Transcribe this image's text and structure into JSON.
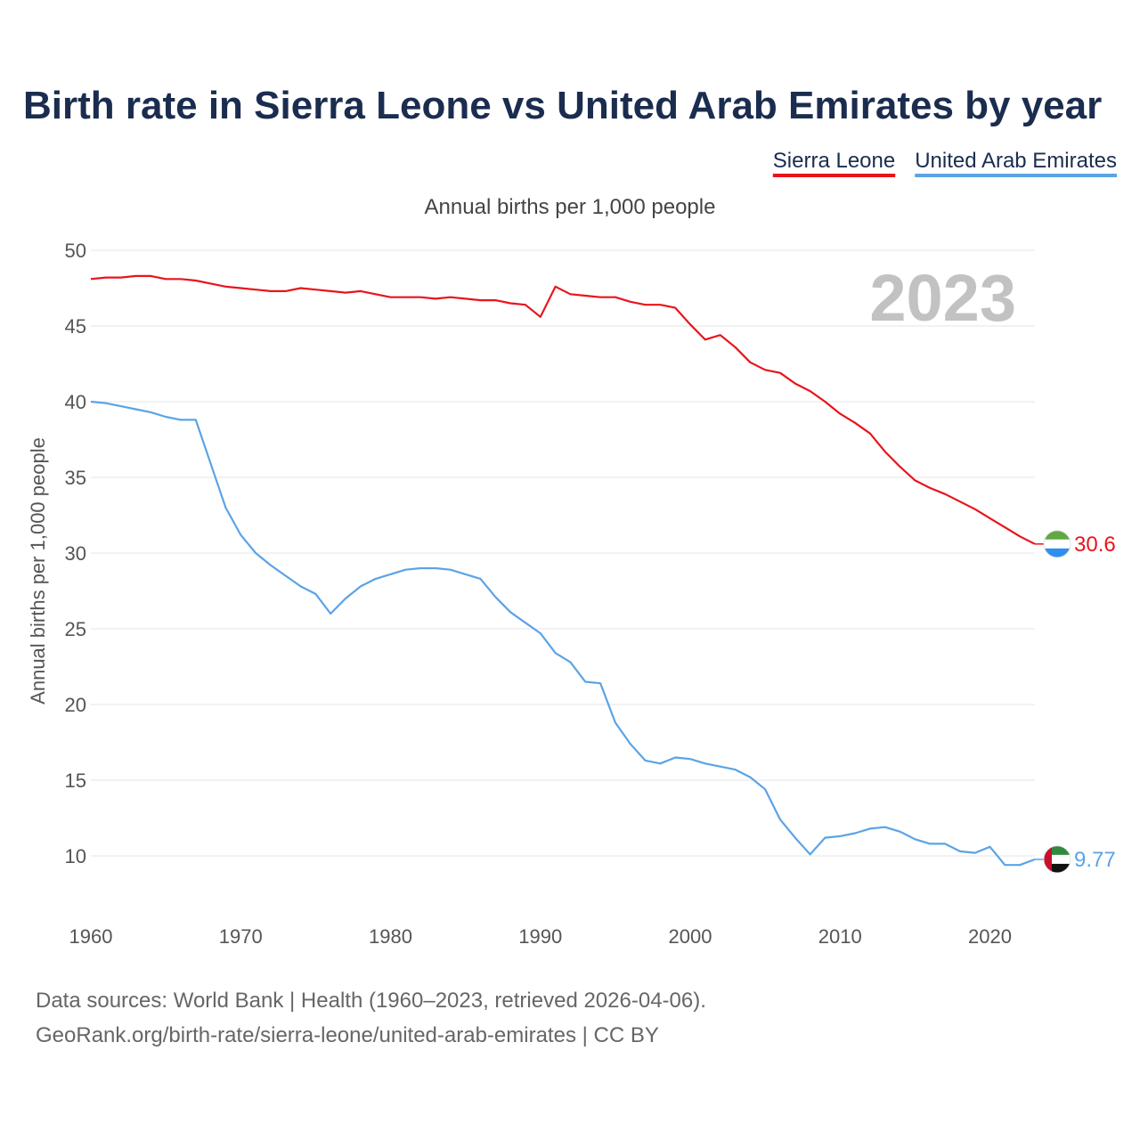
{
  "chart_data": {
    "type": "line",
    "title": "Birth rate in Sierra Leone vs United Arab Emirates by year",
    "subtitle": "Annual births per 1,000 people",
    "ylabel": "Annual births per 1,000 people",
    "xlabel": "",
    "ylim": [
      5,
      50
    ],
    "xlim": [
      1960,
      2023
    ],
    "yticks": [
      10,
      15,
      20,
      25,
      30,
      35,
      40,
      45,
      50
    ],
    "xticks": [
      1960,
      1970,
      1980,
      1990,
      2000,
      2010,
      2020
    ],
    "grid": true,
    "current_year": "2023",
    "legend_position": "top-right",
    "x": [
      1960,
      1961,
      1962,
      1963,
      1964,
      1965,
      1966,
      1967,
      1968,
      1969,
      1970,
      1971,
      1972,
      1973,
      1974,
      1975,
      1976,
      1977,
      1978,
      1979,
      1980,
      1981,
      1982,
      1983,
      1984,
      1985,
      1986,
      1987,
      1988,
      1989,
      1990,
      1991,
      1992,
      1993,
      1994,
      1995,
      1996,
      1997,
      1998,
      1999,
      2000,
      2001,
      2002,
      2003,
      2004,
      2005,
      2006,
      2007,
      2008,
      2009,
      2010,
      2011,
      2012,
      2013,
      2014,
      2015,
      2016,
      2017,
      2018,
      2019,
      2020,
      2021,
      2022,
      2023
    ],
    "series": [
      {
        "name": "Sierra Leone",
        "color": "#e8141c",
        "end_label": "30.6",
        "flag": "sierra-leone-flag",
        "values": [
          48.1,
          48.2,
          48.2,
          48.3,
          48.3,
          48.1,
          48.1,
          48.0,
          47.8,
          47.6,
          47.5,
          47.4,
          47.3,
          47.3,
          47.5,
          47.4,
          47.3,
          47.2,
          47.3,
          47.1,
          46.9,
          46.9,
          46.9,
          46.8,
          46.9,
          46.8,
          46.7,
          46.7,
          46.5,
          46.4,
          45.6,
          47.6,
          47.1,
          47.0,
          46.9,
          46.9,
          46.6,
          46.4,
          46.4,
          46.2,
          45.1,
          44.1,
          44.4,
          43.6,
          42.6,
          42.1,
          41.9,
          41.2,
          40.7,
          40.0,
          39.2,
          38.6,
          37.9,
          36.7,
          35.7,
          34.8,
          34.3,
          33.9,
          33.4,
          32.9,
          32.3,
          31.7,
          31.1,
          30.6
        ]
      },
      {
        "name": "United Arab Emirates",
        "color": "#5ba3e6",
        "end_label": "9.77",
        "flag": "uae-flag",
        "values": [
          40.0,
          39.9,
          39.7,
          39.5,
          39.3,
          39.0,
          38.8,
          38.8,
          35.9,
          33.0,
          31.2,
          30.0,
          29.2,
          28.5,
          27.8,
          27.3,
          26.0,
          27.0,
          27.8,
          28.3,
          28.6,
          28.9,
          29.0,
          29.0,
          28.9,
          28.6,
          28.3,
          27.1,
          26.1,
          25.4,
          24.7,
          23.4,
          22.8,
          21.5,
          21.4,
          18.8,
          17.4,
          16.3,
          16.1,
          16.5,
          16.4,
          16.1,
          15.9,
          15.7,
          15.2,
          14.4,
          12.4,
          11.2,
          10.1,
          11.2,
          11.3,
          11.5,
          11.8,
          11.9,
          11.6,
          11.1,
          10.8,
          10.8,
          10.3,
          10.2,
          10.6,
          9.4,
          9.4,
          9.77
        ]
      }
    ]
  },
  "footer": {
    "line1": "Data sources: World Bank | Health (1960–2023, retrieved 2026-04-06).",
    "line2": "GeoRank.org/birth-rate/sierra-leone/united-arab-emirates | CC BY"
  }
}
